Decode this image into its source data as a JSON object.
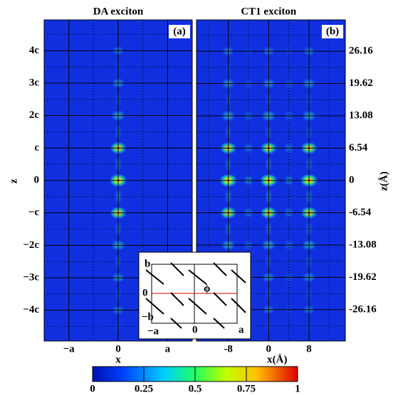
{
  "chart_data": [
    {
      "type": "heatmap",
      "title": "DA  exciton",
      "panel_label": "(a)",
      "xlabel": "x",
      "ylabel": "z",
      "xlim": [
        -1.5,
        1.5
      ],
      "xticks": [
        {
          "value": -1,
          "label": "−a"
        },
        0,
        {
          "value": 1,
          "label": "a"
        }
      ],
      "ylim": [
        -4.95,
        4.95
      ],
      "yticks": [
        {
          "value": 4,
          "label": "4c"
        },
        {
          "value": 3,
          "label": "3c"
        },
        {
          "value": 2,
          "label": "2c"
        },
        {
          "value": 1,
          "label": "c"
        },
        0,
        {
          "value": -1,
          "label": "−c"
        },
        {
          "value": -2,
          "label": "−2c"
        },
        {
          "value": -3,
          "label": "−3c"
        },
        {
          "value": -4,
          "label": "−4c"
        }
      ]
    },
    {
      "type": "heatmap",
      "title": "CT1  exciton",
      "panel_label": "(b)",
      "xlabel": "x(Å)",
      "ylabel": "z(Å)",
      "xlim": [
        -14.3,
        15.2
      ],
      "xticks": [
        -8,
        0,
        8
      ],
      "ylim": [
        -32.5,
        32.5
      ],
      "yticks": [
        26.16,
        19.62,
        13.08,
        6.54,
        0,
        -6.54,
        -13.08,
        -19.62,
        -26.16
      ]
    }
  ],
  "colorbar": {
    "lim": [
      0,
      1
    ],
    "ticks": [
      0,
      0.25,
      0.5,
      0.75,
      1
    ]
  },
  "inset": {
    "labels": {
      "b": "b",
      "origin_left": "0",
      "minus_b": "−b",
      "minus_a": "−a",
      "origin_bottom": "0",
      "a": "a",
      "phi": "ϕ"
    }
  }
}
